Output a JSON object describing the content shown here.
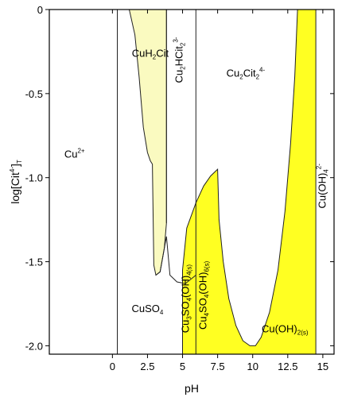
{
  "chart_data": {
    "type": "area",
    "title": "",
    "xlabel": "pH",
    "ylabel_parts": {
      "main": "log[Cit",
      "sup": "4-",
      "close": "]",
      "sub": "T"
    },
    "xlim": [
      -4.5,
      15.8
    ],
    "ylim": [
      -2.05,
      0
    ],
    "xticks": [
      0,
      2.5,
      5,
      7.5,
      10,
      12.5,
      15
    ],
    "xtick_labels": [
      "0",
      "2.5",
      "5",
      "7.5",
      "10",
      "12.5",
      "15"
    ],
    "yticks": [
      0,
      -0.5,
      -1.0,
      -1.5,
      -2.0
    ],
    "ytick_labels": [
      "0",
      "-0.5",
      "-1.0",
      "-1.5",
      "-2.0"
    ],
    "colors": {
      "light_yellow": "#fafac0",
      "yellow": "#ffff22",
      "line": "#222222"
    },
    "boundaries": [
      {
        "name": "CuSO4 / Cu2+ vertical",
        "points": [
          [
            0.35,
            -2.05
          ],
          [
            0.35,
            0
          ]
        ]
      },
      {
        "name": "Cu2HCit2 left vertical",
        "points": [
          [
            3.85,
            -1.27
          ],
          [
            3.85,
            0
          ]
        ]
      },
      {
        "name": "Cu2HCit2 / Cu2Cit2 vertical",
        "points": [
          [
            5.95,
            -1.15
          ],
          [
            5.95,
            0
          ]
        ]
      },
      {
        "name": "CuSO4 upper boundary",
        "points": [
          [
            3.1,
            -1.58
          ],
          [
            3.4,
            -1.56
          ],
          [
            3.7,
            -1.42
          ],
          [
            3.85,
            -1.35
          ],
          [
            4.1,
            -1.58
          ],
          [
            4.6,
            -1.62
          ],
          [
            5.2,
            -1.63
          ],
          [
            5.95,
            -1.58
          ]
        ]
      }
    ],
    "regions": [
      {
        "name": "CuH2Cit",
        "fill": "light_yellow",
        "points": [
          [
            1.2,
            0
          ],
          [
            3.85,
            0
          ],
          [
            3.85,
            -1.27
          ],
          [
            3.7,
            -1.42
          ],
          [
            3.4,
            -1.56
          ],
          [
            3.1,
            -1.58
          ],
          [
            2.95,
            -1.52
          ],
          [
            2.85,
            -0.92
          ],
          [
            2.7,
            -0.9
          ],
          [
            2.5,
            -0.85
          ],
          [
            2.2,
            -0.7
          ],
          [
            1.9,
            -0.4
          ],
          [
            1.6,
            -0.15
          ]
        ]
      },
      {
        "name": "Cu3SO4(OH)4 + Cu4SO4(OH)6",
        "fill": "yellow",
        "points": [
          [
            5.0,
            -2.05
          ],
          [
            5.0,
            -1.55
          ],
          [
            5.3,
            -1.3
          ],
          [
            5.95,
            -1.15
          ],
          [
            6.5,
            -1.05
          ],
          [
            7.0,
            -0.99
          ],
          [
            7.5,
            -0.95
          ],
          [
            7.6,
            -1.25
          ],
          [
            7.9,
            -1.5
          ],
          [
            8.3,
            -1.72
          ],
          [
            8.8,
            -1.88
          ],
          [
            9.3,
            -1.97
          ],
          [
            9.8,
            -2.0
          ],
          [
            10.2,
            -2.0
          ],
          [
            10.6,
            -1.95
          ],
          [
            11.2,
            -1.8
          ],
          [
            11.8,
            -1.55
          ],
          [
            12.3,
            -1.2
          ],
          [
            12.7,
            -0.8
          ],
          [
            13.0,
            -0.4
          ],
          [
            13.2,
            0
          ],
          [
            14.5,
            0
          ],
          [
            14.5,
            -2.05
          ]
        ]
      }
    ],
    "inner_line": {
      "name": "Cu3SO4(OH)4 / Cu4SO4(OH)6 boundary",
      "points": [
        [
          5.95,
          -1.15
        ],
        [
          5.95,
          -2.05
        ]
      ]
    },
    "species_labels": [
      {
        "id": "cu2plus",
        "base": "Cu",
        "script": "2+",
        "script_type": "sup",
        "x": -2.7,
        "y": -0.88,
        "rotate": 0
      },
      {
        "id": "cuh2cit",
        "parts": [
          {
            "t": "CuH"
          },
          {
            "t": "2",
            "s": "sub"
          },
          {
            "t": "Cit"
          }
        ],
        "x": 2.7,
        "y": -0.28,
        "rotate": 0
      },
      {
        "id": "cu2hcit2",
        "parts": [
          {
            "t": "Cu"
          },
          {
            "t": "2",
            "s": "sub"
          },
          {
            "t": "HCit"
          },
          {
            "t": "2",
            "s": "sub"
          },
          {
            "t": "3-",
            "s": "sup"
          }
        ],
        "x": 5.0,
        "y": -0.3,
        "rotate": -90
      },
      {
        "id": "cu2cit2",
        "parts": [
          {
            "t": "Cu"
          },
          {
            "t": "2",
            "s": "sub"
          },
          {
            "t": "Cit"
          },
          {
            "t": "2",
            "s": "sub"
          },
          {
            "t": "4-",
            "s": "sup"
          }
        ],
        "x": 9.5,
        "y": -0.4,
        "rotate": 0
      },
      {
        "id": "cuso4",
        "parts": [
          {
            "t": "CuSO"
          },
          {
            "t": "4",
            "s": "sub"
          }
        ],
        "x": 2.5,
        "y": -1.8,
        "rotate": 0
      },
      {
        "id": "cu3so4oh4",
        "parts": [
          {
            "t": "Cu"
          },
          {
            "t": "3",
            "s": "sub"
          },
          {
            "t": "SO"
          },
          {
            "t": "4",
            "s": "sub"
          },
          {
            "t": "(OH)"
          },
          {
            "t": "4(s)",
            "s": "sub"
          }
        ],
        "x": 5.45,
        "y": -1.72,
        "rotate": -90
      },
      {
        "id": "cu4so4oh6",
        "parts": [
          {
            "t": "Cu"
          },
          {
            "t": "4",
            "s": "sub"
          },
          {
            "t": "SO"
          },
          {
            "t": "4",
            "s": "sub"
          },
          {
            "t": "(OH)"
          },
          {
            "t": "6(s)",
            "s": "sub"
          }
        ],
        "x": 6.7,
        "y": -1.7,
        "rotate": -90
      },
      {
        "id": "cuoh2",
        "parts": [
          {
            "t": "Cu(OH)"
          },
          {
            "t": "2(s)",
            "s": "sub"
          }
        ],
        "x": 12.3,
        "y": -1.92,
        "rotate": 0
      },
      {
        "id": "cuoh4",
        "parts": [
          {
            "t": "Cu(OH)"
          },
          {
            "t": "4",
            "s": "sub"
          },
          {
            "t": "2-",
            "s": "sup"
          }
        ],
        "x": 15.2,
        "y": -1.05,
        "rotate": -90
      }
    ]
  }
}
